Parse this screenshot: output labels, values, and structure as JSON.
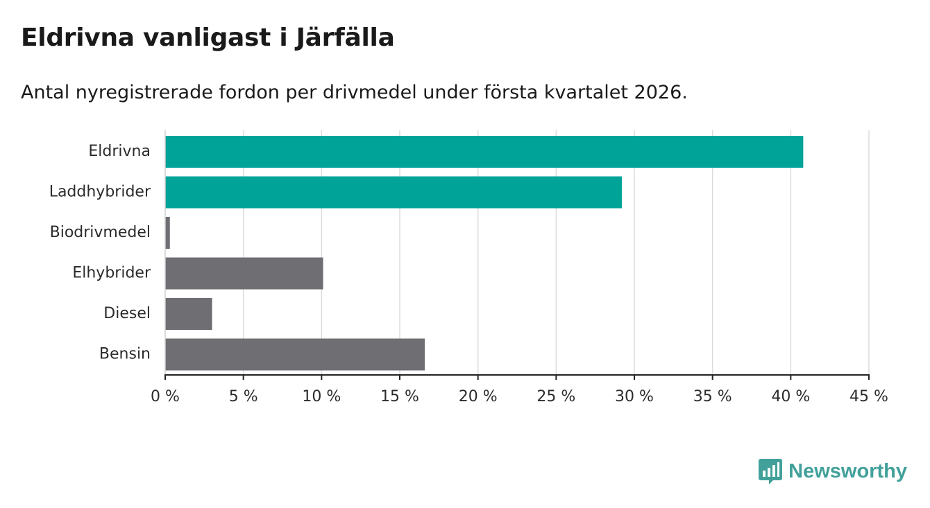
{
  "title": "Eldrivna vanligast i Järfälla",
  "subtitle": "Antal nyregistrerade fordon per drivmedel under första kvartalet 2026.",
  "brand": {
    "name": "Newsworthy",
    "icon": "newsworthy-logo-icon",
    "color": "#41a09a"
  },
  "chart_data": {
    "type": "bar",
    "orientation": "horizontal",
    "categories": [
      "Eldrivna",
      "Laddhybrider",
      "Biodrivmedel",
      "Elhybrider",
      "Diesel",
      "Bensin"
    ],
    "values": [
      40.8,
      29.2,
      0.3,
      10.1,
      3.0,
      16.6
    ],
    "colors": [
      "#00a398",
      "#00a398",
      "#6f6e73",
      "#6f6e73",
      "#6f6e73",
      "#6f6e73"
    ],
    "xlim": [
      0,
      45
    ],
    "xticks": [
      0,
      5,
      10,
      15,
      20,
      25,
      30,
      35,
      40,
      45
    ],
    "xtick_labels": [
      "0 %",
      "5 %",
      "10 %",
      "15 %",
      "20 %",
      "25 %",
      "30 %",
      "35 %",
      "40 %",
      "45 %"
    ],
    "unit": "%",
    "grid": true,
    "xlabel": "",
    "ylabel": ""
  }
}
